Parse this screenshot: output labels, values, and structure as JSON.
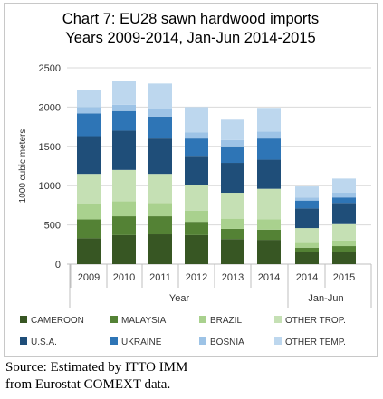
{
  "chart_data": {
    "type": "bar",
    "stacked": true,
    "title": "Chart 7: EU28 sawn hardwood imports",
    "subtitle": "Years 2009-2014, Jan-Jun 2014-2015",
    "ylabel": "1000 cubic meters",
    "xlabel": "Year",
    "period_label": "Jan-Jun",
    "ylim": [
      0,
      2500
    ],
    "yticks": [
      0,
      500,
      1000,
      1500,
      2000,
      2500
    ],
    "categories": [
      "2009",
      "2010",
      "2011",
      "2012",
      "2013",
      "2014",
      "2014",
      "2015"
    ],
    "legend_position": "bottom",
    "series": [
      {
        "name": "CAMEROON",
        "color": "#375623",
        "values": [
          330,
          370,
          380,
          370,
          320,
          310,
          150,
          160
        ]
      },
      {
        "name": "MALAYSIA",
        "color": "#548235",
        "values": [
          240,
          240,
          230,
          170,
          130,
          130,
          60,
          70
        ]
      },
      {
        "name": "BRAZIL",
        "color": "#a9d18e",
        "values": [
          200,
          190,
          170,
          140,
          130,
          130,
          60,
          70
        ]
      },
      {
        "name": "OTHER TROP.",
        "color": "#c5e0b4",
        "values": [
          380,
          400,
          370,
          330,
          330,
          390,
          190,
          210
        ]
      },
      {
        "name": "U.S.A.",
        "color": "#1f4e79",
        "values": [
          480,
          500,
          450,
          370,
          380,
          370,
          250,
          270
        ]
      },
      {
        "name": "UKRAINE",
        "color": "#2e75b6",
        "values": [
          290,
          250,
          280,
          220,
          210,
          270,
          100,
          70
        ]
      },
      {
        "name": "BOSNIA",
        "color": "#9dc3e6",
        "values": [
          80,
          80,
          90,
          80,
          80,
          90,
          40,
          60
        ]
      },
      {
        "name": "OTHER TEMP.",
        "color": "#bdd7ee",
        "values": [
          220,
          300,
          330,
          320,
          260,
          300,
          140,
          180
        ]
      }
    ]
  },
  "source": {
    "line1": "Source: Estimated by ITTO IMM",
    "line2": "from Eurostat COMEXT data."
  }
}
